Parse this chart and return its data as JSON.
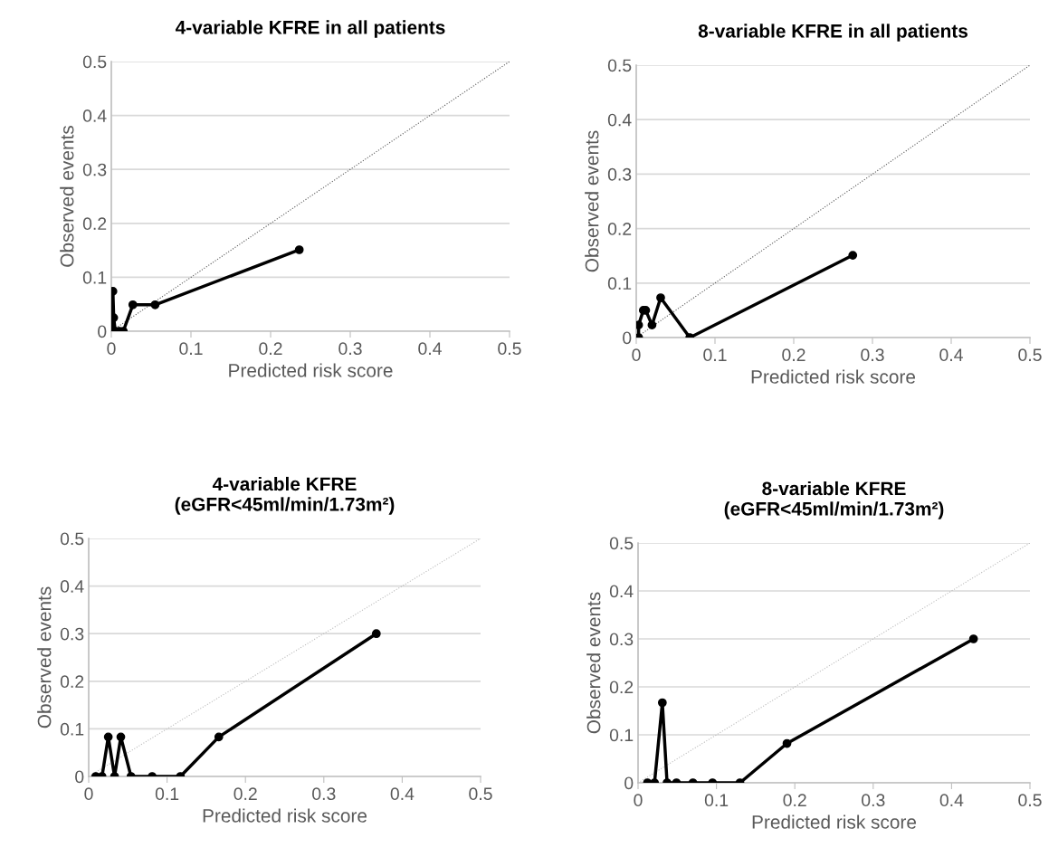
{
  "chart_data": [
    {
      "type": "line",
      "title": "4-variable KFRE in all patients",
      "xlabel": "Predicted risk score",
      "ylabel": "Observed events",
      "xlim": [
        0,
        0.5
      ],
      "ylim": [
        0,
        0.5
      ],
      "xticks": [
        0,
        0.1,
        0.2,
        0.3,
        0.4,
        0.5
      ],
      "yticks": [
        0,
        0.1,
        0.2,
        0.3,
        0.4,
        0.5
      ],
      "grid": "y",
      "legend": false,
      "series": [
        {
          "type": "line",
          "color": "#000000",
          "marker": "circle",
          "line_style": "solid",
          "x": [
            0.001,
            0.002,
            0.003,
            0.005,
            0.01,
            0.015,
            0.027,
            0.055,
            0.236
          ],
          "values": [
            0,
            0.074,
            0.025,
            0,
            0,
            0,
            0.049,
            0.049,
            0.151
          ]
        },
        {
          "type": "line",
          "color": "#555555",
          "marker": "none",
          "line_style": "dotted",
          "x": [
            0,
            0.5
          ],
          "values": [
            0,
            0.5
          ]
        }
      ]
    },
    {
      "type": "line",
      "title": "8-variable KFRE in all patients",
      "xlabel": "Predicted risk score",
      "ylabel": "Observed events",
      "xlim": [
        0,
        0.5
      ],
      "ylim": [
        0,
        0.5
      ],
      "xticks": [
        0,
        0.1,
        0.2,
        0.3,
        0.4,
        0.5
      ],
      "yticks": [
        0,
        0.1,
        0.2,
        0.3,
        0.4,
        0.5
      ],
      "grid": "y",
      "legend": false,
      "series": [
        {
          "type": "line",
          "color": "#000000",
          "marker": "circle",
          "line_style": "solid",
          "x": [
            0.003,
            0.003,
            0.009,
            0.012,
            0.02,
            0.031,
            0.068,
            0.275
          ],
          "values": [
            0,
            0.023,
            0.05,
            0.05,
            0.023,
            0.073,
            0,
            0.151
          ]
        },
        {
          "type": "line",
          "color": "#555555",
          "marker": "none",
          "line_style": "dotted",
          "x": [
            0,
            0.5
          ],
          "values": [
            0,
            0.5
          ]
        }
      ]
    },
    {
      "type": "line",
      "title": "4-variable KFRE\n(eGFR<45ml/min/1.73m²)",
      "xlabel": "Predicted risk score",
      "ylabel": "Observed events",
      "xlim": [
        0,
        0.5
      ],
      "ylim": [
        0,
        0.5
      ],
      "xticks": [
        0,
        0.1,
        0.2,
        0.3,
        0.4,
        0.5
      ],
      "yticks": [
        0,
        0.1,
        0.2,
        0.3,
        0.4,
        0.5
      ],
      "grid": "y",
      "legend": false,
      "series": [
        {
          "type": "line",
          "color": "#000000",
          "marker": "circle",
          "line_style": "solid",
          "x": [
            0.009,
            0.017,
            0.025,
            0.033,
            0.041,
            0.054,
            0.081,
            0.117,
            0.166,
            0.367
          ],
          "values": [
            0,
            0,
            0.083,
            0,
            0.083,
            0,
            0,
            0,
            0.083,
            0.3
          ]
        },
        {
          "type": "line",
          "color": "#bbbbbb",
          "marker": "none",
          "line_style": "dotted",
          "x": [
            0,
            0.5
          ],
          "values": [
            0,
            0.5
          ]
        }
      ]
    },
    {
      "type": "line",
      "title": "8-variable KFRE\n(eGFR<45ml/min/1.73m²)",
      "xlabel": "Predicted risk score",
      "ylabel": "Observed events",
      "xlim": [
        0,
        0.5
      ],
      "ylim": [
        0,
        0.5
      ],
      "xticks": [
        0,
        0.1,
        0.2,
        0.3,
        0.4,
        0.5
      ],
      "yticks": [
        0,
        0.1,
        0.2,
        0.3,
        0.4,
        0.5
      ],
      "grid": "y",
      "legend": false,
      "series": [
        {
          "type": "line",
          "color": "#000000",
          "marker": "circle",
          "line_style": "solid",
          "x": [
            0.012,
            0.021,
            0.031,
            0.037,
            0.049,
            0.07,
            0.095,
            0.13,
            0.19,
            0.428
          ],
          "values": [
            0,
            0,
            0.167,
            0,
            0,
            0,
            0,
            0,
            0.082,
            0.3
          ]
        },
        {
          "type": "line",
          "color": "#bbbbbb",
          "marker": "none",
          "line_style": "dotted",
          "x": [
            0,
            0.5
          ],
          "values": [
            0,
            0.5
          ]
        }
      ]
    }
  ]
}
